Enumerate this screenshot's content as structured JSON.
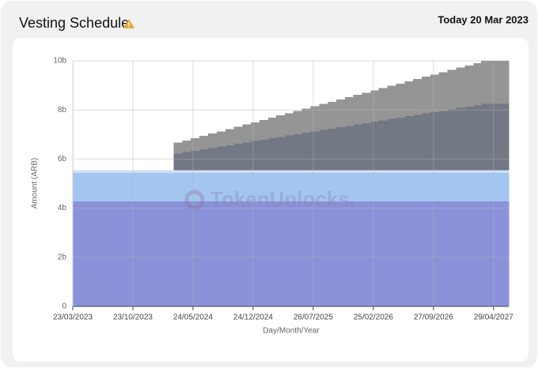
{
  "header": {
    "title": "Vesting Schedule",
    "today": "Today 20 Mar 2023"
  },
  "watermark": "TokenUnlocks.",
  "chart_data": {
    "type": "stacked-step-area",
    "ylabel": "Amount (ARB)",
    "xlabel": "Day/Month/Year",
    "xlim": [
      "2023-03-23",
      "2027-06-22"
    ],
    "xticks": [
      {
        "value": "2023-03-23",
        "label": "23/03/2023"
      },
      {
        "value": "2023-10-23",
        "label": "23/10/2023"
      },
      {
        "value": "2024-05-24",
        "label": "24/05/2024"
      },
      {
        "value": "2024-12-24",
        "label": "24/12/2024"
      },
      {
        "value": "2025-07-26",
        "label": "26/07/2025"
      },
      {
        "value": "2026-02-25",
        "label": "25/02/2026"
      },
      {
        "value": "2026-09-27",
        "label": "27/09/2026"
      },
      {
        "value": "2027-04-29",
        "label": "29/04/2027"
      }
    ],
    "ylim": [
      0,
      10
    ],
    "yticks": [
      0,
      {
        "value": 2,
        "label": "2b"
      },
      {
        "value": 4,
        "label": "4b"
      },
      {
        "value": 6,
        "label": "6b"
      },
      {
        "value": 8,
        "label": "8b"
      },
      {
        "value": 10,
        "label": "10b"
      }
    ],
    "grid": true,
    "x": [
      "2023-03-23",
      "2024-03-16",
      "2024-04-16",
      "2024-05-16",
      "2024-06-16",
      "2024-07-16",
      "2024-08-16",
      "2024-09-16",
      "2024-10-16",
      "2024-11-16",
      "2024-12-16",
      "2025-01-16",
      "2025-02-16",
      "2025-03-16",
      "2025-04-16",
      "2025-05-16",
      "2025-06-16",
      "2025-07-16",
      "2025-08-16",
      "2025-09-16",
      "2025-10-16",
      "2025-11-16",
      "2025-12-16",
      "2026-01-16",
      "2026-02-16",
      "2026-03-16",
      "2026-04-16",
      "2026-05-16",
      "2026-06-16",
      "2026-07-16",
      "2026-08-16",
      "2026-09-16",
      "2026-10-16",
      "2026-11-16",
      "2026-12-16",
      "2027-01-16",
      "2027-02-16",
      "2027-03-16"
    ],
    "series": [
      {
        "color": "#8a93d9",
        "values": [
          4.278,
          4.278,
          4.278,
          4.278,
          4.278,
          4.278,
          4.278,
          4.278,
          4.278,
          4.278,
          4.278,
          4.278,
          4.278,
          4.278,
          4.278,
          4.278,
          4.278,
          4.278,
          4.278,
          4.278,
          4.278,
          4.278,
          4.278,
          4.278,
          4.278,
          4.278,
          4.278,
          4.278,
          4.278,
          4.278,
          4.278,
          4.278,
          4.278,
          4.278,
          4.278,
          4.278,
          4.278,
          4.278
        ]
      },
      {
        "color": "#a3c6f1",
        "values": [
          1.162,
          1.162,
          1.162,
          1.162,
          1.162,
          1.162,
          1.162,
          1.162,
          1.162,
          1.162,
          1.162,
          1.162,
          1.162,
          1.162,
          1.162,
          1.162,
          1.162,
          1.162,
          1.162,
          1.162,
          1.162,
          1.162,
          1.162,
          1.162,
          1.162,
          1.162,
          1.162,
          1.162,
          1.162,
          1.162,
          1.162,
          1.162,
          1.162,
          1.162,
          1.162,
          1.162,
          1.162,
          1.162
        ]
      },
      {
        "color": "#cddff2",
        "values": [
          0.113,
          0.113,
          0.113,
          0.113,
          0.113,
          0.113,
          0.113,
          0.113,
          0.113,
          0.113,
          0.113,
          0.113,
          0.113,
          0.113,
          0.113,
          0.113,
          0.113,
          0.113,
          0.113,
          0.113,
          0.113,
          0.113,
          0.113,
          0.113,
          0.113,
          0.113,
          0.113,
          0.113,
          0.113,
          0.113,
          0.113,
          0.113,
          0.113,
          0.113,
          0.113,
          0.113,
          0.113,
          0.113
        ]
      },
      {
        "color": "#727884",
        "values": [
          0,
          0.674,
          0.73,
          0.786,
          0.842,
          0.898,
          0.954,
          1.01,
          1.066,
          1.123,
          1.179,
          1.235,
          1.291,
          1.347,
          1.403,
          1.459,
          1.515,
          1.572,
          1.628,
          1.684,
          1.74,
          1.796,
          1.852,
          1.908,
          1.964,
          2.021,
          2.077,
          2.133,
          2.189,
          2.245,
          2.301,
          2.357,
          2.413,
          2.47,
          2.526,
          2.582,
          2.638,
          2.694
        ]
      },
      {
        "color": "#959595",
        "values": [
          0,
          0.438,
          0.475,
          0.511,
          0.548,
          0.584,
          0.621,
          0.657,
          0.694,
          0.73,
          0.767,
          0.803,
          0.84,
          0.876,
          0.913,
          0.949,
          0.986,
          1.022,
          1.059,
          1.096,
          1.132,
          1.169,
          1.205,
          1.242,
          1.278,
          1.315,
          1.351,
          1.388,
          1.424,
          1.461,
          1.497,
          1.534,
          1.57,
          1.607,
          1.643,
          1.68,
          1.716,
          1.753
        ]
      }
    ]
  }
}
